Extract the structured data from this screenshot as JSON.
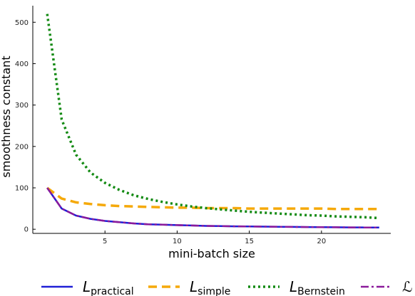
{
  "chart_data": {
    "type": "line",
    "xlabel": "mini-batch size",
    "ylabel": "smoothness constant",
    "xlim": [
      0,
      24.8
    ],
    "ylim": [
      -10,
      540
    ],
    "xticks": [
      5,
      10,
      15,
      20
    ],
    "yticks": [
      0,
      100,
      200,
      300,
      400,
      500
    ],
    "grid": false,
    "legend_position": "bottom",
    "x": [
      1,
      2,
      3,
      4,
      5,
      6,
      7,
      8,
      9,
      10,
      11,
      12,
      13,
      14,
      15,
      16,
      17,
      18,
      19,
      20,
      21,
      22,
      23,
      24
    ],
    "series": [
      {
        "name": "L_practical",
        "label_main": "L",
        "label_sub": "practical",
        "color": "#1f1fd6",
        "style": "solid",
        "values": [
          100,
          50,
          33,
          25,
          20,
          17,
          14,
          12,
          11,
          10,
          9,
          8,
          7.7,
          7.1,
          6.7,
          6.3,
          5.9,
          5.6,
          5.3,
          5,
          4.8,
          4.5,
          4.3,
          4.2
        ]
      },
      {
        "name": "L_simple",
        "label_main": "L",
        "label_sub": "simple",
        "color": "#f5a90a",
        "style": "dashed",
        "values": [
          100,
          74,
          65,
          61,
          58,
          56,
          55,
          54,
          53,
          52,
          52,
          51,
          51,
          51,
          50,
          50,
          50,
          50,
          50,
          50,
          49,
          49,
          49,
          49
        ]
      },
      {
        "name": "L_Bernstein",
        "label_main": "L",
        "label_sub": "Bernstein",
        "color": "#138a13",
        "style": "dotted",
        "values": [
          520,
          265,
          180,
          137,
          112,
          95,
          82,
          73,
          66,
          60,
          55,
          51,
          48,
          45,
          42,
          40,
          38,
          36,
          34,
          33,
          31,
          30,
          29,
          27
        ]
      },
      {
        "name": "ℒ",
        "label_main": "ℒ",
        "label_sub": "",
        "color": "#8b1a9a",
        "style": "dashdot",
        "values": [
          100,
          50,
          33,
          25,
          20,
          17,
          14,
          12,
          11,
          10,
          9,
          8,
          7.7,
          7.1,
          6.7,
          6.3,
          5.9,
          5.6,
          5.3,
          5,
          4.8,
          4.5,
          4.3,
          4.2
        ]
      }
    ]
  }
}
